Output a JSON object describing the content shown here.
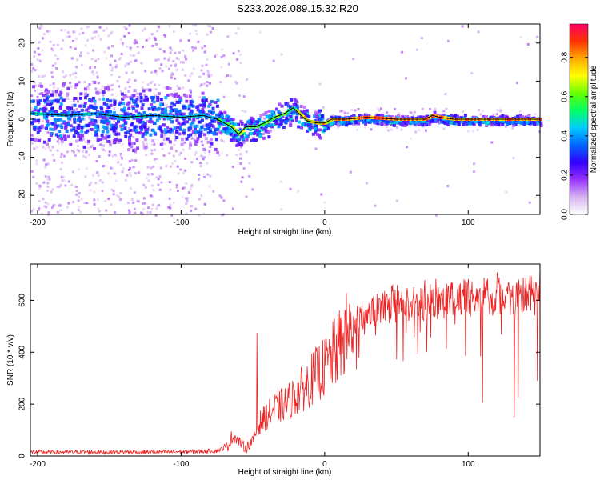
{
  "title": "S233.2026.089.15.32.R20",
  "colors": {
    "snr_line": "#ee2222",
    "ridge": "#000000",
    "axis": "#000000"
  },
  "chart_data": [
    {
      "id": "spectrogram",
      "type": "heatmap",
      "xlabel": "Height of straight line (km)",
      "ylabel": "Frequency (Hz)",
      "xlim": [
        -205,
        150
      ],
      "ylim": [
        -25,
        25
      ],
      "xticks": [
        -200,
        -100,
        0,
        100
      ],
      "xtick_labels": [
        "-200",
        "-100",
        "0",
        "100"
      ],
      "yticks": [
        -20,
        -10,
        0,
        10,
        20
      ],
      "ytick_labels": [
        "-20",
        "-10",
        "0",
        "10",
        "20"
      ],
      "colorbar": {
        "label": "Normalized spectral amplitude",
        "range": [
          0,
          0.97
        ],
        "ticks": [
          0.0,
          0.2,
          0.4,
          0.6,
          0.8
        ],
        "tick_labels": [
          "0.0",
          "0.2",
          "0.4",
          "0.6",
          "0.8"
        ],
        "colormap": [
          "#ffffff",
          "#d6b3f0",
          "#9933ff",
          "#3300ff",
          "#0066ff",
          "#00ccff",
          "#00ff66",
          "#66ff00",
          "#ffff00",
          "#ffaa00",
          "#ff3300",
          "#ff0066"
        ]
      },
      "ridge": {
        "x": [
          -205,
          -180,
          -160,
          -140,
          -120,
          -100,
          -85,
          -75,
          -65,
          -60,
          -55,
          -48,
          -42,
          -35,
          -28,
          -22,
          -18,
          -12,
          -5,
          0,
          5,
          15,
          30,
          50,
          70,
          75,
          80,
          90,
          110,
          130,
          150
        ],
        "y": [
          1.5,
          1.0,
          1.5,
          0.5,
          1.0,
          0.5,
          1.0,
          0.0,
          -2.0,
          -4.0,
          -2.0,
          -2.0,
          -1.0,
          0.5,
          1.5,
          3.0,
          1.5,
          -0.5,
          -1.0,
          -1.0,
          0.0,
          0.0,
          0.5,
          0.0,
          0.0,
          1.0,
          0.5,
          0.0,
          0.0,
          0.0,
          0.0
        ]
      }
    },
    {
      "id": "snr",
      "type": "line",
      "xlabel": "Height of straight line (km)",
      "ylabel": "SNR (10 * v/v)",
      "xlim": [
        -205,
        150
      ],
      "ylim": [
        0,
        740
      ],
      "xticks": [
        -200,
        -100,
        0,
        100
      ],
      "xtick_labels": [
        "-200",
        "-100",
        "0",
        "100"
      ],
      "yticks": [
        0,
        200,
        400,
        600
      ],
      "ytick_labels": [
        "0",
        "200",
        "400",
        "600"
      ],
      "series": [
        {
          "name": "SNR",
          "trend_x": [
            -205,
            -150,
            -100,
            -75,
            -68,
            -63,
            -55,
            -50,
            -45,
            -35,
            -25,
            -15,
            -5,
            0,
            5,
            10,
            15,
            25,
            40,
            60,
            80,
            100,
            120,
            135,
            150
          ],
          "trend_y": [
            15,
            15,
            16,
            20,
            35,
            75,
            30,
            60,
            130,
            180,
            210,
            260,
            320,
            340,
            380,
            420,
            470,
            530,
            570,
            585,
            600,
            610,
            615,
            615,
            612
          ],
          "spikes": [
            {
              "x": -47,
              "y": 475
            },
            {
              "x": -65,
              "y": 95
            },
            {
              "x": 110,
              "y": 205
            },
            {
              "x": 132,
              "y": 150
            },
            {
              "x": 135,
              "y": 225
            },
            {
              "x": 148,
              "y": 290
            }
          ]
        }
      ]
    }
  ]
}
